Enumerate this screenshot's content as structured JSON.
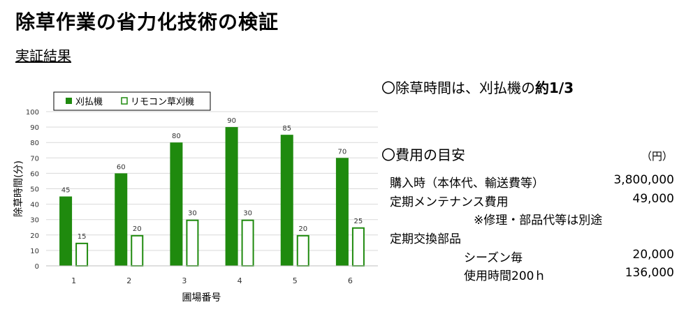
{
  "page": {
    "title": "除草作業の省力化技術の検証",
    "subtitle": "実証結果"
  },
  "chart_data": {
    "type": "bar",
    "xlabel": "圃場番号",
    "ylabel": "除草時間(分)",
    "categories": [
      "1",
      "2",
      "3",
      "4",
      "5",
      "6"
    ],
    "ylim": [
      0,
      100
    ],
    "yticks": [
      "0",
      "10",
      "20",
      "30",
      "40",
      "50",
      "60",
      "70",
      "80",
      "90",
      "100"
    ],
    "legend_position": "top",
    "series": [
      {
        "name": "刈払機",
        "values": [
          45,
          60,
          80,
          90,
          85,
          70
        ],
        "color": "#1f8a0e",
        "fill": "solid"
      },
      {
        "name": "リモコン草刈機",
        "values": [
          15,
          20,
          30,
          30,
          20,
          25
        ],
        "color": "#1f8a0e",
        "fill": "outline"
      }
    ]
  },
  "results": {
    "time_line_prefix": "〇除草時間は、刈払機の",
    "time_line_emph": "約1/3",
    "cost_heading": "〇費用の目安",
    "unit": "（円）",
    "items": [
      {
        "label": "購入時（本体代、輸送費等）",
        "amount": "3,800,000"
      },
      {
        "label": "定期メンテナンス費用",
        "amount": "49,000"
      },
      {
        "label": "※修理・部品代等は別途",
        "amount": ""
      },
      {
        "label": "定期交換部品",
        "amount": ""
      },
      {
        "label": "シーズン毎",
        "amount": "20,000"
      },
      {
        "label": "使用時間200ｈ",
        "amount": "136,000"
      }
    ]
  }
}
